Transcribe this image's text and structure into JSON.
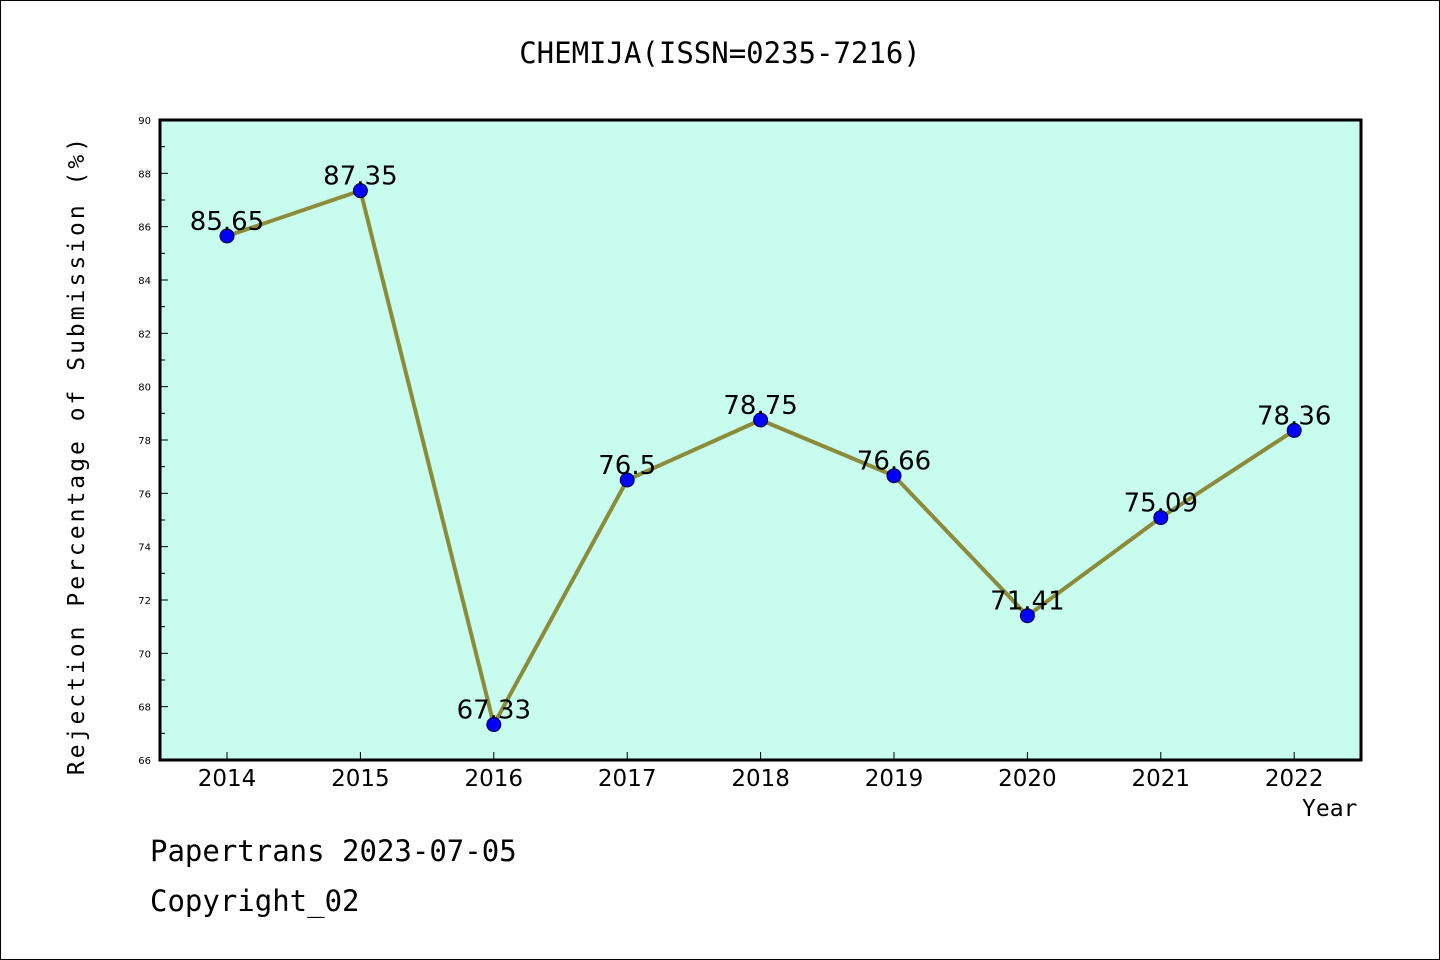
{
  "chart_data": {
    "type": "line",
    "title": "CHEMIJA(ISSN=0235-7216)",
    "xlabel": "Year",
    "ylabel": "Rejection Percentage of Submission (%)",
    "categories": [
      "2014",
      "2015",
      "2016",
      "2017",
      "2018",
      "2019",
      "2020",
      "2021",
      "2022"
    ],
    "values": [
      85.65,
      87.35,
      67.33,
      76.5,
      78.75,
      76.66,
      71.41,
      75.09,
      78.36
    ],
    "data_labels": [
      "85.65",
      "87.35",
      "67.33",
      "76.5",
      "78.75",
      "76.66",
      "71.41",
      "75.09",
      "78.36"
    ],
    "ylim": [
      66,
      90
    ],
    "yticks": [
      66,
      68,
      70,
      72,
      74,
      76,
      78,
      80,
      82,
      84,
      86,
      88,
      90
    ],
    "grid": false,
    "legend": false,
    "colors": {
      "plot_background": "#c8fcee",
      "line": "#8b8b3a",
      "marker": "#0000ff"
    }
  },
  "footer": {
    "line1": "Papertrans 2023-07-05",
    "line2": "Copyright_02"
  }
}
